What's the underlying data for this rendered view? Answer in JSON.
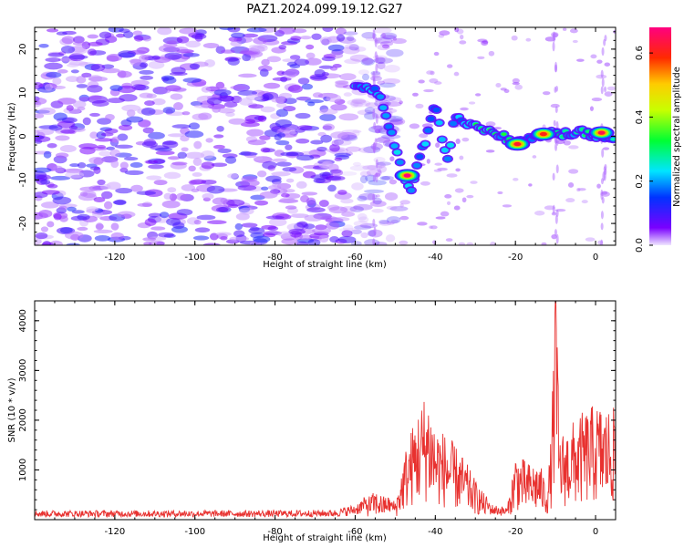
{
  "figure": {
    "title": "PAZ1.2024.099.19.12.G27"
  },
  "chart_data": [
    {
      "type": "heatmap",
      "title": "PAZ1.2024.099.19.12.G27",
      "xlabel": "Height of straight line (km)",
      "ylabel": "Frequency (Hz)",
      "xlim": [
        -140,
        5
      ],
      "ylim": [
        -25,
        25
      ],
      "xticks": [
        -120,
        -100,
        -80,
        -60,
        -40,
        -20,
        0
      ],
      "yticks": [
        -20,
        -10,
        0,
        10,
        20
      ],
      "colormap": "gist_rainbow (purple → blue → cyan → green → yellow → red → pink)",
      "noise_region_x": [
        -140,
        -55
      ],
      "main_signal_trace": [
        {
          "x": -60,
          "y": 12
        },
        {
          "x": -54,
          "y": 10
        },
        {
          "x": -48,
          "y": -9
        },
        {
          "x": -46,
          "y": -12
        },
        {
          "x": -40,
          "y": 7
        },
        {
          "x": -37,
          "y": -6
        },
        {
          "x": -35,
          "y": 5
        },
        {
          "x": -30,
          "y": 2
        },
        {
          "x": -25,
          "y": 1
        },
        {
          "x": -20,
          "y": -1.5
        },
        {
          "x": -15,
          "y": 0
        },
        {
          "x": -10,
          "y": 0.5
        },
        {
          "x": -5,
          "y": 1
        },
        {
          "x": 0,
          "y": 0.5
        },
        {
          "x": 5,
          "y": 0
        }
      ],
      "peak_points": [
        {
          "x": -47,
          "y": -9,
          "amplitude": 0.68
        },
        {
          "x": -19.5,
          "y": -1.8,
          "amplitude": 0.62
        },
        {
          "x": -13,
          "y": 0.5,
          "amplitude": 0.6
        },
        {
          "x": 1.5,
          "y": 0.8,
          "amplitude": 0.64
        }
      ]
    },
    {
      "type": "colorbar",
      "label": "Normalized spectral amplitude",
      "range": [
        0.0,
        0.68
      ],
      "ticks": [
        "0.0",
        "0.2",
        "0.4",
        "0.6"
      ]
    },
    {
      "type": "line",
      "xlabel": "Height of straight line (km)",
      "ylabel": "SNR (10 * v/v)",
      "xlim": [
        -140,
        5
      ],
      "ylim": [
        0,
        4400
      ],
      "xticks": [
        -120,
        -100,
        -80,
        -60,
        -40,
        -20,
        0
      ],
      "yticks": [
        1000,
        2000,
        3000,
        4000
      ],
      "line_color": "#e8312f",
      "envelope": [
        {
          "x": -140,
          "y": 150
        },
        {
          "x": -80,
          "y": 150
        },
        {
          "x": -65,
          "y": 160
        },
        {
          "x": -60,
          "y": 250
        },
        {
          "x": -55,
          "y": 500
        },
        {
          "x": -50,
          "y": 300
        },
        {
          "x": -47,
          "y": 1400
        },
        {
          "x": -44,
          "y": 2000
        },
        {
          "x": -42,
          "y": 2300
        },
        {
          "x": -40,
          "y": 1700
        },
        {
          "x": -36,
          "y": 1400
        },
        {
          "x": -33,
          "y": 1100
        },
        {
          "x": -30,
          "y": 700
        },
        {
          "x": -26,
          "y": 250
        },
        {
          "x": -22,
          "y": 200
        },
        {
          "x": -20,
          "y": 1200
        },
        {
          "x": -17,
          "y": 1000
        },
        {
          "x": -14,
          "y": 1000
        },
        {
          "x": -12,
          "y": 600
        },
        {
          "x": -11,
          "y": 1600
        },
        {
          "x": -10,
          "y": 4400
        },
        {
          "x": -9,
          "y": 1500
        },
        {
          "x": -6,
          "y": 1700
        },
        {
          "x": -3,
          "y": 1900
        },
        {
          "x": 0,
          "y": 2050
        },
        {
          "x": 2,
          "y": 2000
        },
        {
          "x": 5,
          "y": 1950
        }
      ]
    }
  ]
}
